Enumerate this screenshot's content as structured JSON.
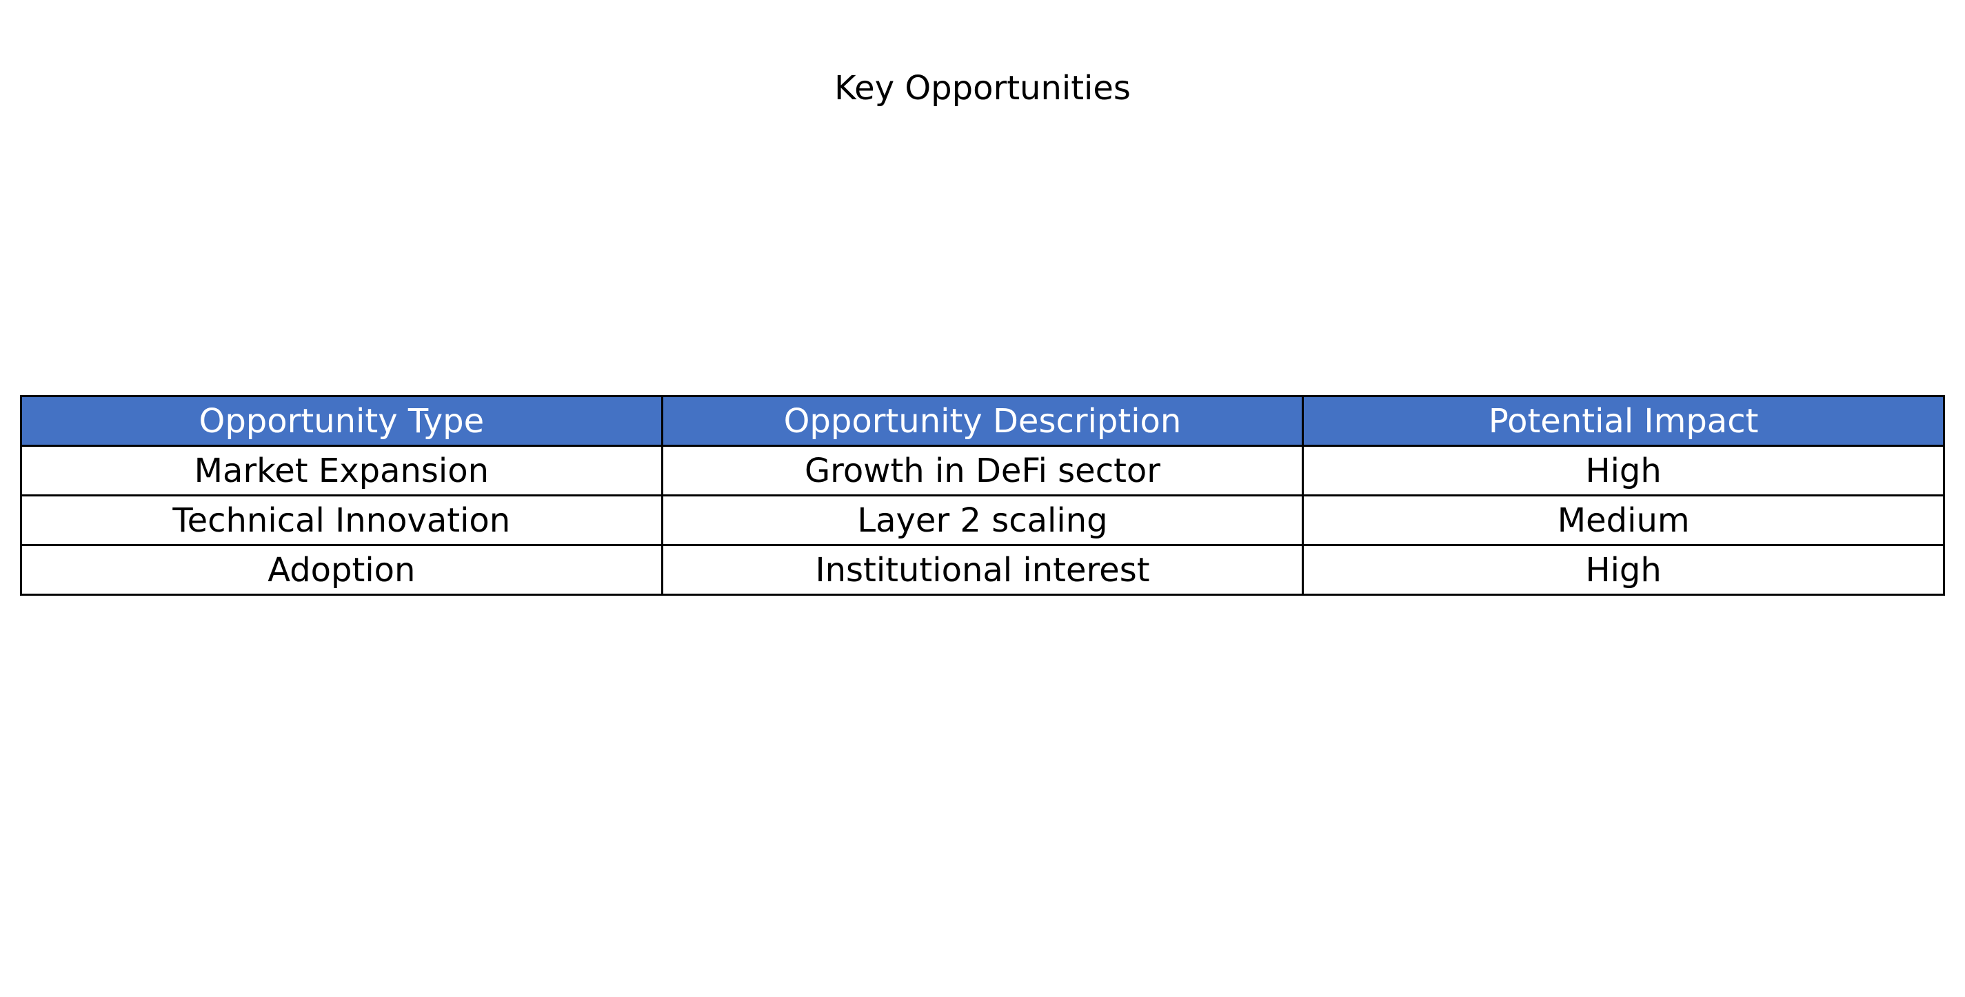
{
  "chart_data": {
    "type": "table",
    "title": "Key Opportunities",
    "header_color": "#4472c4",
    "header_text_color": "#ffffff",
    "columns": [
      "Opportunity Type",
      "Opportunity Description",
      "Potential Impact"
    ],
    "rows": [
      [
        "Market Expansion",
        "Growth in DeFi sector",
        "High"
      ],
      [
        "Technical Innovation",
        "Layer 2 scaling",
        "Medium"
      ],
      [
        "Adoption",
        "Institutional interest",
        "High"
      ]
    ]
  }
}
